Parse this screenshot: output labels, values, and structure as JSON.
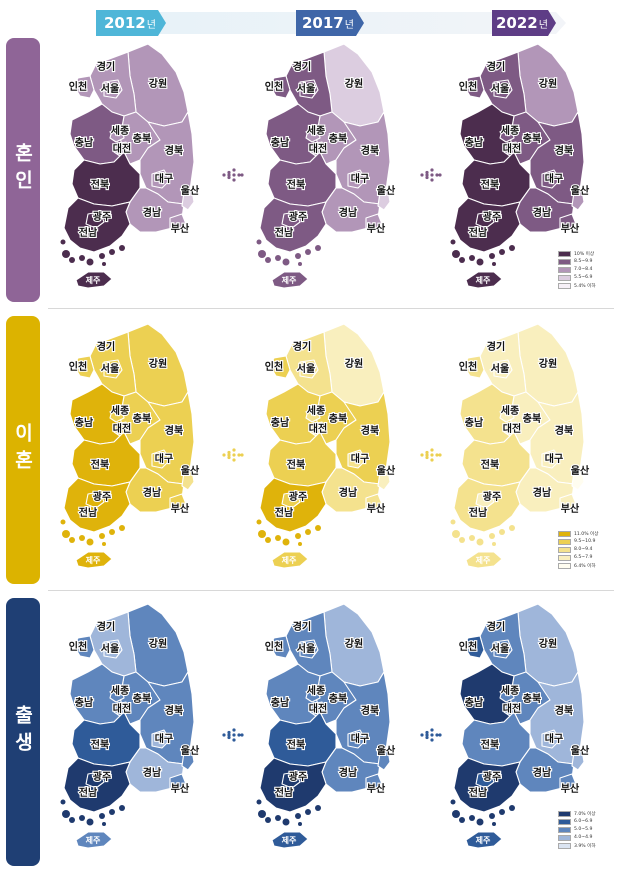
{
  "years": [
    {
      "year": "2012",
      "suffix": "년",
      "color": "#4fb6d8"
    },
    {
      "year": "2017",
      "suffix": "년",
      "color": "#3f66a8"
    },
    {
      "year": "2022",
      "suffix": "년",
      "color": "#5e3d86"
    }
  ],
  "region_labels": {
    "gyeonggi": "경기",
    "seoul": "서울",
    "incheon": "인천",
    "gangwon": "강원",
    "chungbuk": "충북",
    "chungnam": "충남",
    "sejong": "세종",
    "daejeon": "대전",
    "gyeongbuk": "경북",
    "daegu": "대구",
    "jeonbuk": "전북",
    "gwangju": "광주",
    "jeonnam": "전남",
    "gyeongnam": "경남",
    "ulsan": "울산",
    "busan": "부산",
    "jeju": "제주"
  },
  "categories": [
    {
      "id": "marriage",
      "label": "혼인",
      "side_color": "#8f6597",
      "legend": [
        {
          "text": "10% 이상",
          "color": "#4c2d4e"
        },
        {
          "text": "8.5~9.9",
          "color": "#7e5a84"
        },
        {
          "text": "7.0~8.4",
          "color": "#b296b8"
        },
        {
          "text": "5.5~6.9",
          "color": "#dccde0"
        },
        {
          "text": "5.4% 이하",
          "color": "#f6f0f7"
        }
      ],
      "maps": [
        {
          "gyeonggi": 2,
          "seoul": 2,
          "incheon": 2,
          "gangwon": 2,
          "chungbuk": 2,
          "chungnam": 1,
          "sejong": 2,
          "daejeon": 2,
          "gyeongbuk": 2,
          "daegu": 2,
          "jeonbuk": 0,
          "gwangju": 0,
          "jeonnam": 0,
          "gyeongnam": 2,
          "ulsan": 3,
          "busan": 2,
          "jeju": 0
        },
        {
          "gyeonggi": 1,
          "seoul": 1,
          "incheon": 1,
          "gangwon": 3,
          "chungbuk": 2,
          "chungnam": 1,
          "sejong": 2,
          "daejeon": 2,
          "gyeongbuk": 2,
          "daegu": 2,
          "jeonbuk": 1,
          "gwangju": 1,
          "jeonnam": 1,
          "gyeongnam": 2,
          "ulsan": 3,
          "busan": 2,
          "jeju": 1
        },
        {
          "gyeonggi": 1,
          "seoul": 1,
          "incheon": 1,
          "gangwon": 2,
          "chungbuk": 1,
          "chungnam": 0,
          "sejong": 1,
          "daejeon": 1,
          "gyeongbuk": 1,
          "daegu": 1,
          "jeonbuk": 0,
          "gwangju": 0,
          "jeonnam": 0,
          "gyeongnam": 1,
          "ulsan": 2,
          "busan": 1,
          "jeju": 0
        }
      ]
    },
    {
      "id": "divorce",
      "label": "이혼",
      "side_color": "#dcb300",
      "legend": [
        {
          "text": "11.0% 이상",
          "color": "#dfb30b"
        },
        {
          "text": "9.5~10.9",
          "color": "#ecd052"
        },
        {
          "text": "8.0~9.4",
          "color": "#f4e28e"
        },
        {
          "text": "6.5~7.9",
          "color": "#f9efbe"
        },
        {
          "text": "6.4% 이하",
          "color": "#fffdf0"
        }
      ],
      "maps": [
        {
          "gyeonggi": 1,
          "seoul": 1,
          "incheon": 1,
          "gangwon": 1,
          "chungbuk": 1,
          "chungnam": 0,
          "sejong": 1,
          "daejeon": 1,
          "gyeongbuk": 1,
          "daegu": 1,
          "jeonbuk": 0,
          "gwangju": 0,
          "jeonnam": 0,
          "gyeongnam": 1,
          "ulsan": 2,
          "busan": 1,
          "jeju": 0
        },
        {
          "gyeonggi": 2,
          "seoul": 2,
          "incheon": 1,
          "gangwon": 3,
          "chungbuk": 1,
          "chungnam": 1,
          "sejong": 2,
          "daejeon": 2,
          "gyeongbuk": 1,
          "daegu": 2,
          "jeonbuk": 1,
          "gwangju": 1,
          "jeonnam": 0,
          "gyeongnam": 2,
          "ulsan": 3,
          "busan": 2,
          "jeju": 1
        },
        {
          "gyeonggi": 3,
          "seoul": 3,
          "incheon": 2,
          "gangwon": 3,
          "chungbuk": 3,
          "chungnam": 2,
          "sejong": 3,
          "daejeon": 3,
          "gyeongbuk": 3,
          "daegu": 3,
          "jeonbuk": 2,
          "gwangju": 3,
          "jeonnam": 2,
          "gyeongnam": 3,
          "ulsan": 4,
          "busan": 3,
          "jeju": 2
        }
      ]
    },
    {
      "id": "birth",
      "label": "출생",
      "side_color": "#1f3f74",
      "legend": [
        {
          "text": "7.0% 이상",
          "color": "#1f3a6e"
        },
        {
          "text": "6.0~6.9",
          "color": "#2f5b99"
        },
        {
          "text": "5.0~5.9",
          "color": "#5f86bd"
        },
        {
          "text": "4.0~4.9",
          "color": "#9fb6da"
        },
        {
          "text": "3.9% 이하",
          "color": "#dbe4f1"
        }
      ],
      "maps": [
        {
          "gyeonggi": 3,
          "seoul": 3,
          "incheon": 2,
          "gangwon": 2,
          "chungbuk": 2,
          "chungnam": 2,
          "sejong": 2,
          "daejeon": 2,
          "gyeongbuk": 2,
          "daegu": 3,
          "jeonbuk": 1,
          "gwangju": 0,
          "jeonnam": 0,
          "gyeongnam": 3,
          "ulsan": 2,
          "busan": 2,
          "jeju": 2
        },
        {
          "gyeonggi": 2,
          "seoul": 2,
          "incheon": 2,
          "gangwon": 3,
          "chungbuk": 2,
          "chungnam": 2,
          "sejong": 2,
          "daejeon": 2,
          "gyeongbuk": 2,
          "daegu": 2,
          "jeonbuk": 1,
          "gwangju": 0,
          "jeonnam": 0,
          "gyeongnam": 2,
          "ulsan": 2,
          "busan": 2,
          "jeju": 1
        },
        {
          "gyeonggi": 2,
          "seoul": 2,
          "incheon": 1,
          "gangwon": 3,
          "chungbuk": 2,
          "chungnam": 0,
          "sejong": 2,
          "daejeon": 2,
          "gyeongbuk": 3,
          "daegu": 3,
          "jeonbuk": 2,
          "gwangju": 1,
          "jeonnam": 0,
          "gyeongnam": 2,
          "ulsan": 3,
          "busan": 2,
          "jeju": 1
        }
      ]
    }
  ]
}
